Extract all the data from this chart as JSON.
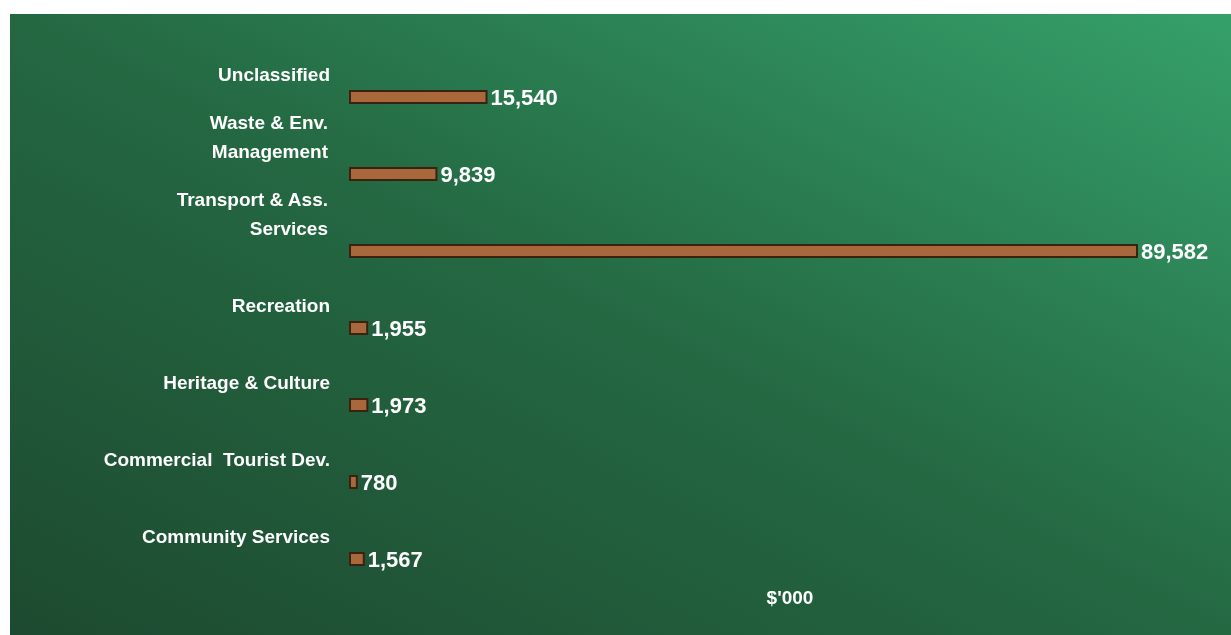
{
  "chart_data": {
    "type": "bar",
    "orientation": "horizontal",
    "xlabel": "$'000",
    "categories": [
      "Unclassified",
      "Waste & Env.\nManagement",
      "Transport & Ass.\nServices",
      "Recreation",
      "Heritage & Culture",
      "Commercial  Tourist Dev.",
      "Community Services"
    ],
    "values": [
      15540,
      9839,
      89582,
      1955,
      1973,
      780,
      1567
    ],
    "value_labels": [
      "15,540",
      "9,839",
      "89,582",
      "1,955",
      "1,973",
      "780",
      "1,567"
    ],
    "color": "#a8683c"
  }
}
